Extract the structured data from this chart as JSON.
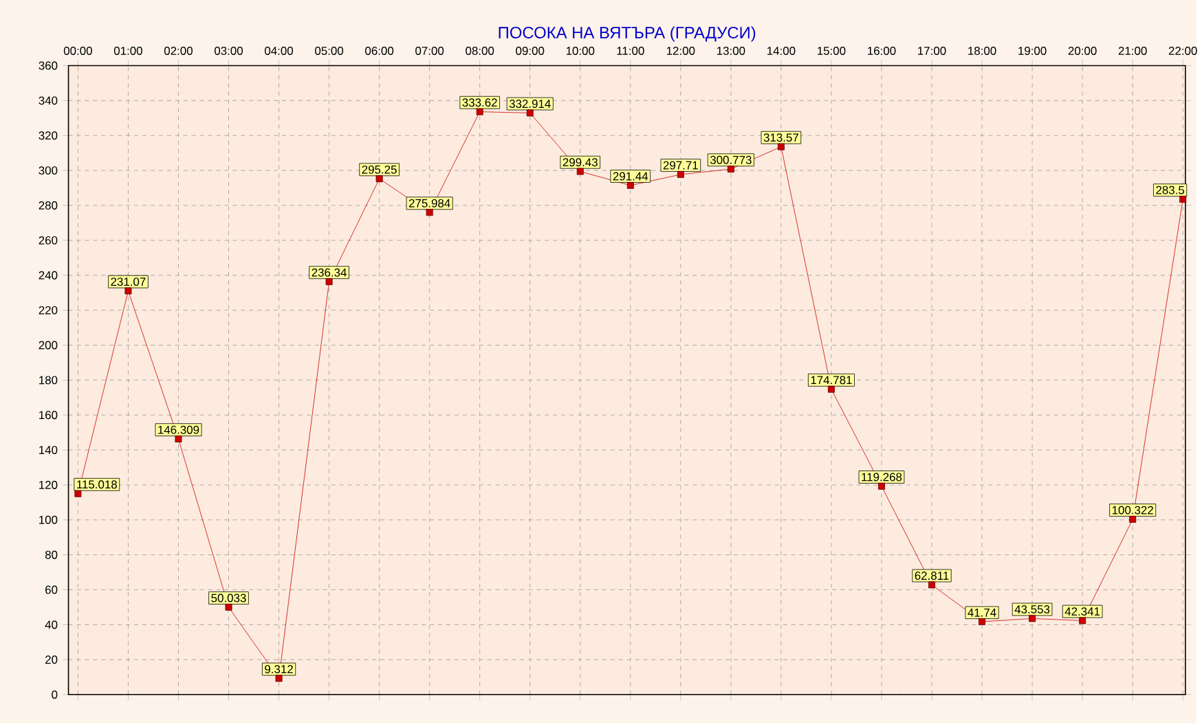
{
  "chart_data": {
    "type": "line",
    "title": "ПОСОКА НА ВЯТЪРА (ГРАДУСИ)",
    "categories": [
      "00:00",
      "01:00",
      "02:00",
      "03:00",
      "04:00",
      "05:00",
      "06:00",
      "07:00",
      "08:00",
      "09:00",
      "10:00",
      "11:00",
      "12:00",
      "13:00",
      "14:00",
      "15:00",
      "16:00",
      "17:00",
      "18:00",
      "19:00",
      "20:00",
      "21:00",
      "22:00"
    ],
    "values": [
      115.018,
      231.07,
      146.309,
      50.033,
      9.312,
      236.34,
      295.25,
      275.984,
      333.62,
      332.914,
      299.43,
      291.44,
      297.71,
      300.773,
      313.57,
      174.781,
      119.268,
      62.811,
      41.74,
      43.553,
      42.341,
      100.322,
      283.5
    ],
    "color": "#cc0000",
    "ylim": [
      0,
      360
    ],
    "yticks": [
      0,
      20,
      40,
      60,
      80,
      100,
      120,
      140,
      160,
      180,
      200,
      220,
      240,
      260,
      280,
      300,
      320,
      340,
      360
    ],
    "grid": true,
    "marker": "square",
    "line_style": "solid",
    "data_labels": true
  }
}
